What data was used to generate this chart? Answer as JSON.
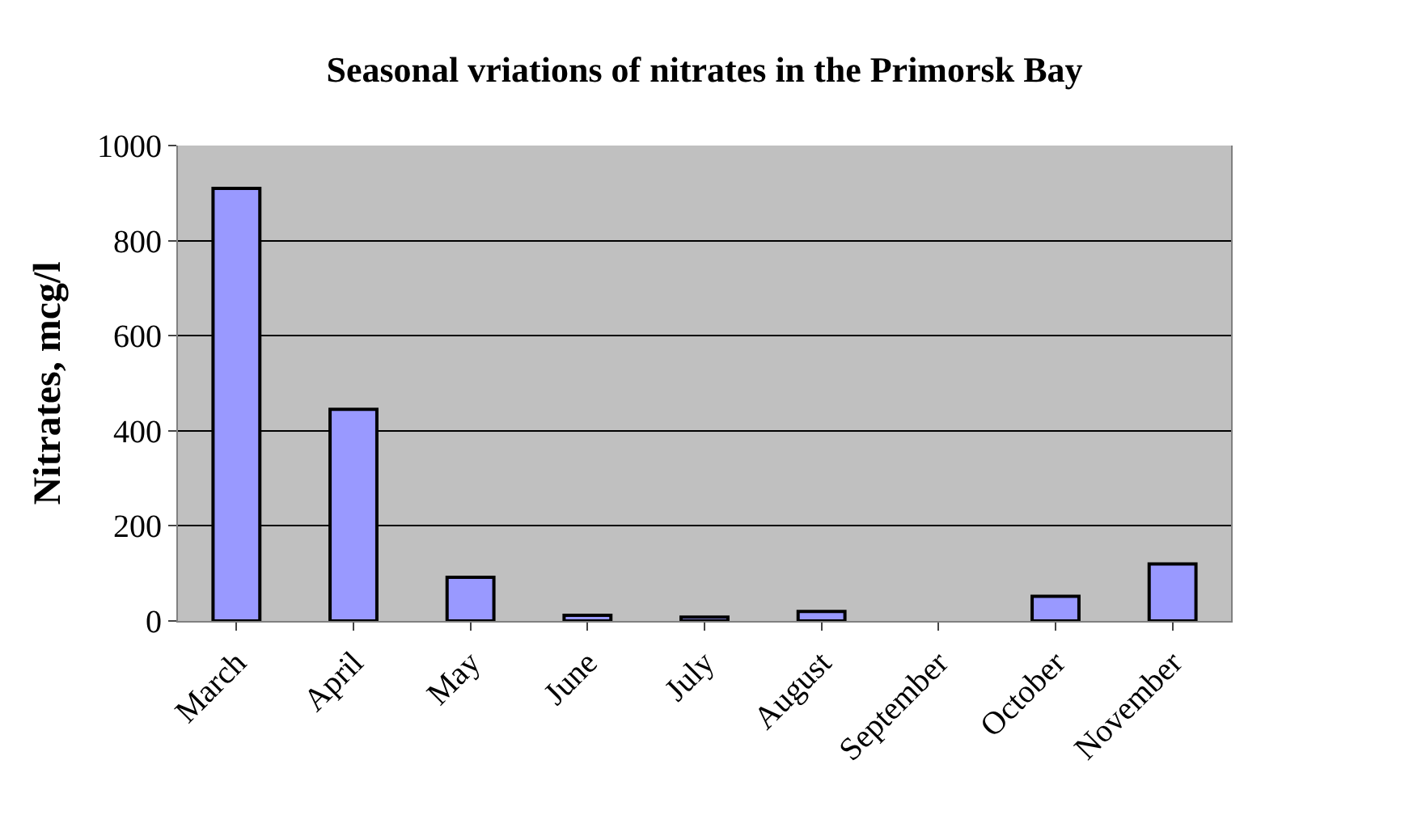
{
  "chart_data": {
    "type": "bar",
    "title": "Seasonal vriations of nitrates in the Primorsk Bay",
    "ylabel": "Nitrates, mcg/l",
    "categories": [
      "March",
      "April",
      "May",
      "June",
      "July",
      "August",
      "September",
      "October",
      "November"
    ],
    "values": [
      910,
      445,
      92,
      12,
      8,
      20,
      null,
      52,
      120
    ],
    "color": "#9999ff",
    "ylim": [
      0,
      1000
    ],
    "yticks": [
      0,
      200,
      400,
      600,
      800,
      1000
    ],
    "grid": "y"
  }
}
